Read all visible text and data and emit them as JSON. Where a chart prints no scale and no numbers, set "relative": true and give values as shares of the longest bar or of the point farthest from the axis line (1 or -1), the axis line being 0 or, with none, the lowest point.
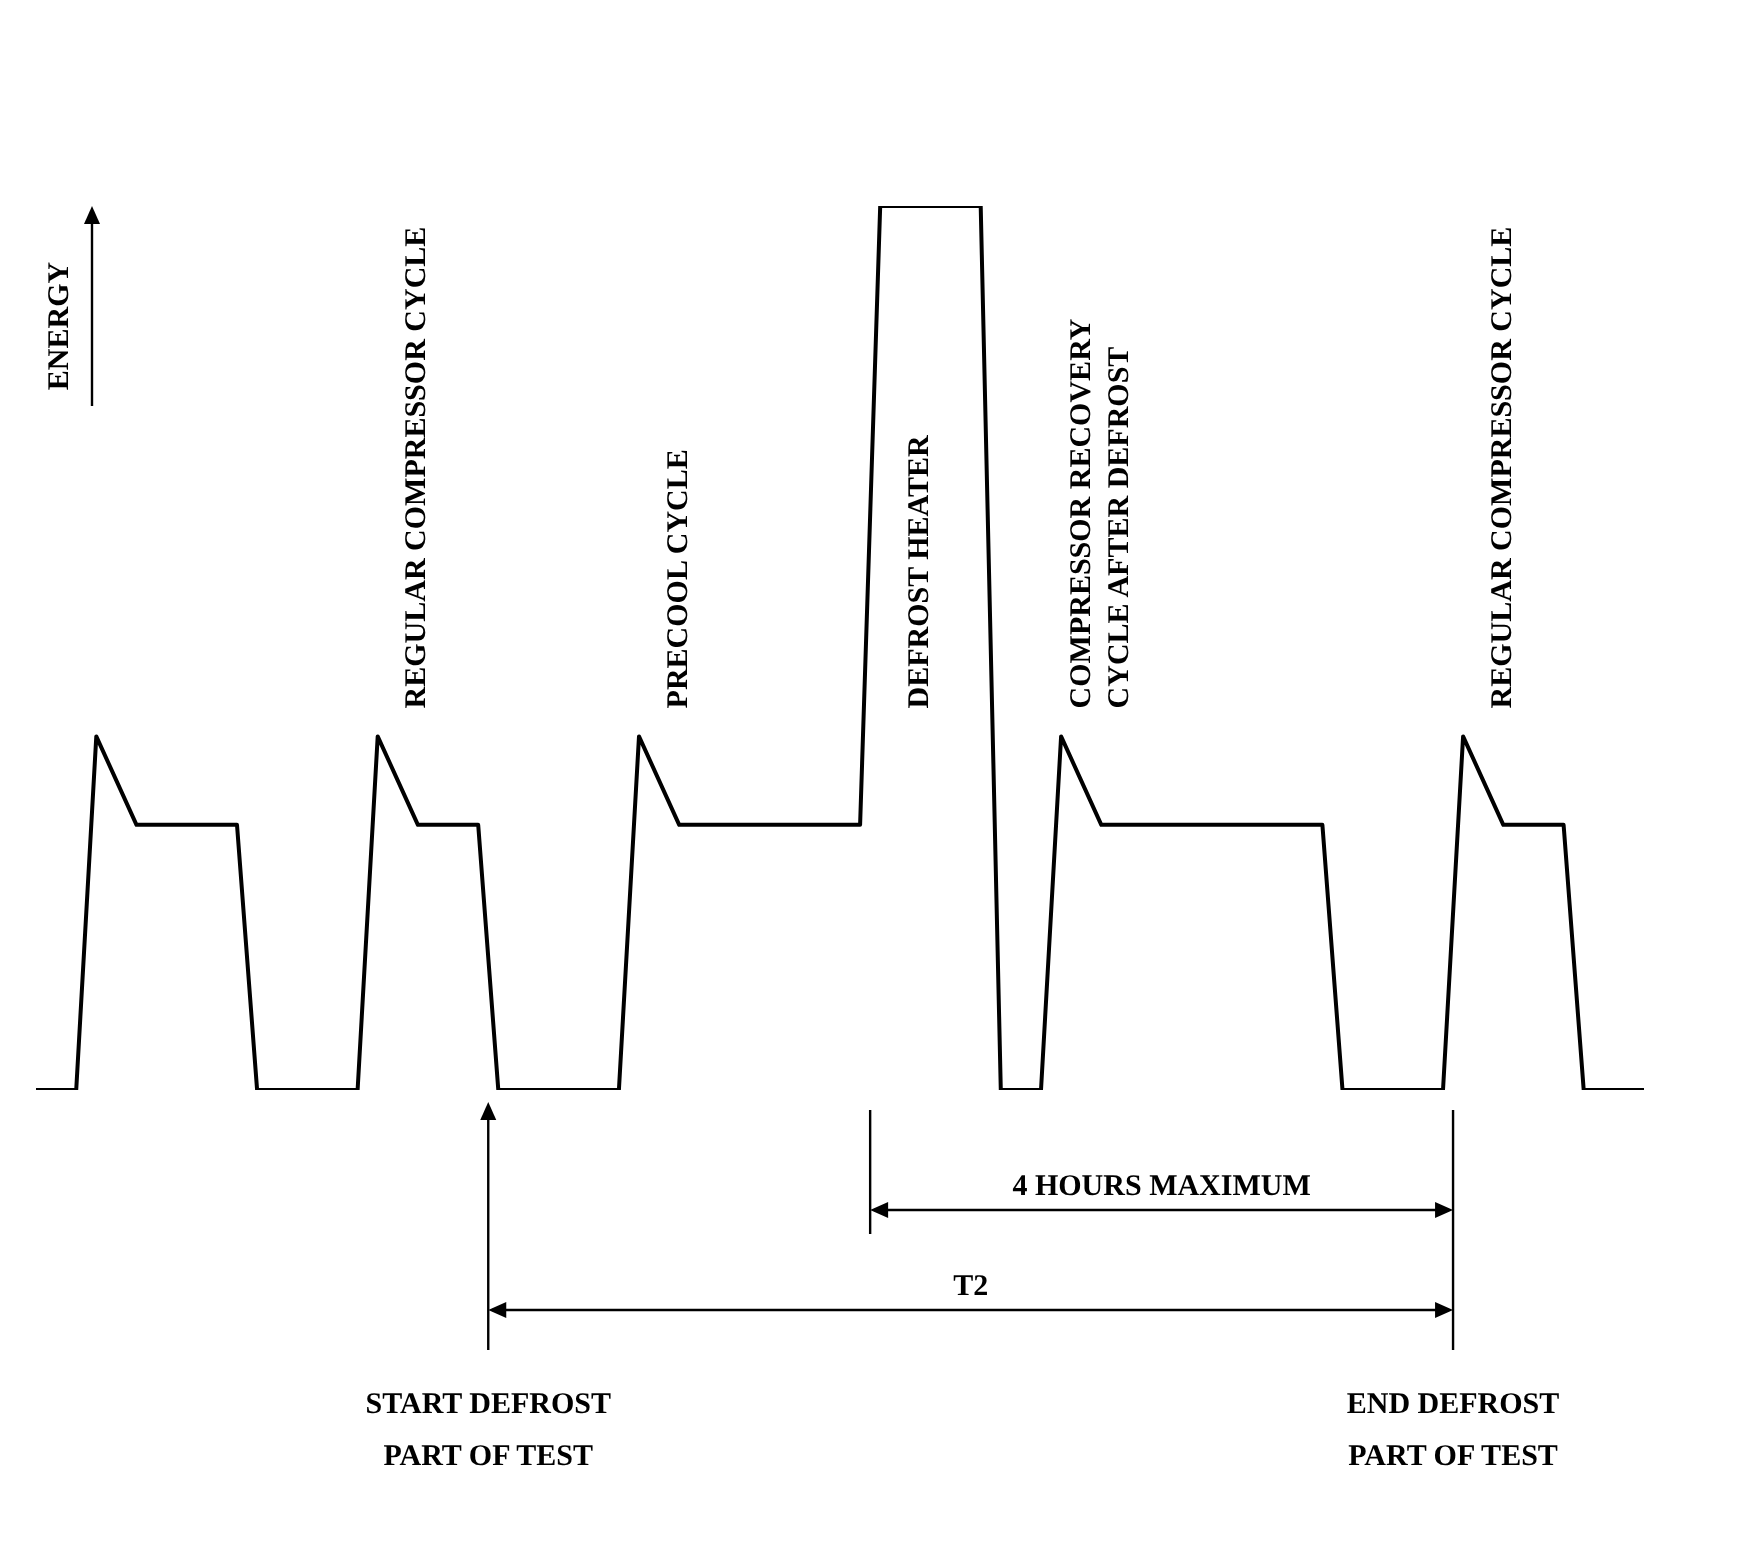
{
  "chart_data": {
    "type": "line",
    "relative": true,
    "marker": "none",
    "ylabel": "ENERGY",
    "categories": [
      null,
      null,
      null,
      null,
      null,
      null,
      null,
      null,
      null,
      null,
      null,
      null,
      null,
      null,
      null,
      null,
      null,
      null,
      null,
      null,
      null,
      null,
      null,
      null,
      null,
      null,
      null,
      null,
      null,
      null,
      null,
      null,
      null,
      null,
      null,
      null,
      null,
      null,
      null,
      null,
      null,
      null,
      null,
      null,
      null,
      null,
      null,
      null,
      null,
      null,
      null,
      null,
      null,
      null,
      null,
      null,
      null,
      null,
      null,
      null,
      null,
      null,
      null,
      null,
      null,
      null,
      null,
      null,
      null,
      null,
      null,
      null,
      null,
      null,
      null,
      null,
      null,
      null,
      null,
      null,
      null
    ],
    "series": [
      {
        "color": "#000000",
        "values": [
          0,
          0,
          0,
          0.4,
          0.35,
          0.3,
          0.3,
          0.3,
          0.3,
          0.3,
          0.3,
          0,
          0,
          0,
          0,
          0,
          0,
          0.4,
          0.35,
          0.3,
          0.3,
          0.3,
          0.3,
          0,
          0,
          0,
          0,
          0,
          0,
          0,
          0.4,
          0.35,
          0.3,
          0.3,
          0.3,
          0.3,
          0.3,
          0.3,
          0.3,
          0.3,
          0.3,
          0.3,
          1,
          1,
          1,
          1,
          1,
          1,
          0,
          0,
          0,
          0.4,
          0.35,
          0.3,
          0.3,
          0.3,
          0.3,
          0.3,
          0.3,
          0.3,
          0.3,
          0.3,
          0.3,
          0.3,
          0.3,
          0,
          0,
          0,
          0,
          0,
          0,
          0.4,
          0.35,
          0.3,
          0.3,
          0.3,
          0.3,
          0,
          0,
          0,
          0
        ]
      }
    ],
    "annotations": [
      "REGULAR COMPRESSOR CYCLE",
      "PRECOOL CYCLE",
      "DEFROST HEATER",
      "COMPRESSOR RECOVERY\nCYCLE AFTER DEFROST",
      "REGULAR COMPRESSOR CYCLE",
      "4 HOURS MAXIMUM",
      "T2",
      "START DEFROST\nPART OF TEST",
      "END DEFROST\nPART OF TEST"
    ]
  }
}
